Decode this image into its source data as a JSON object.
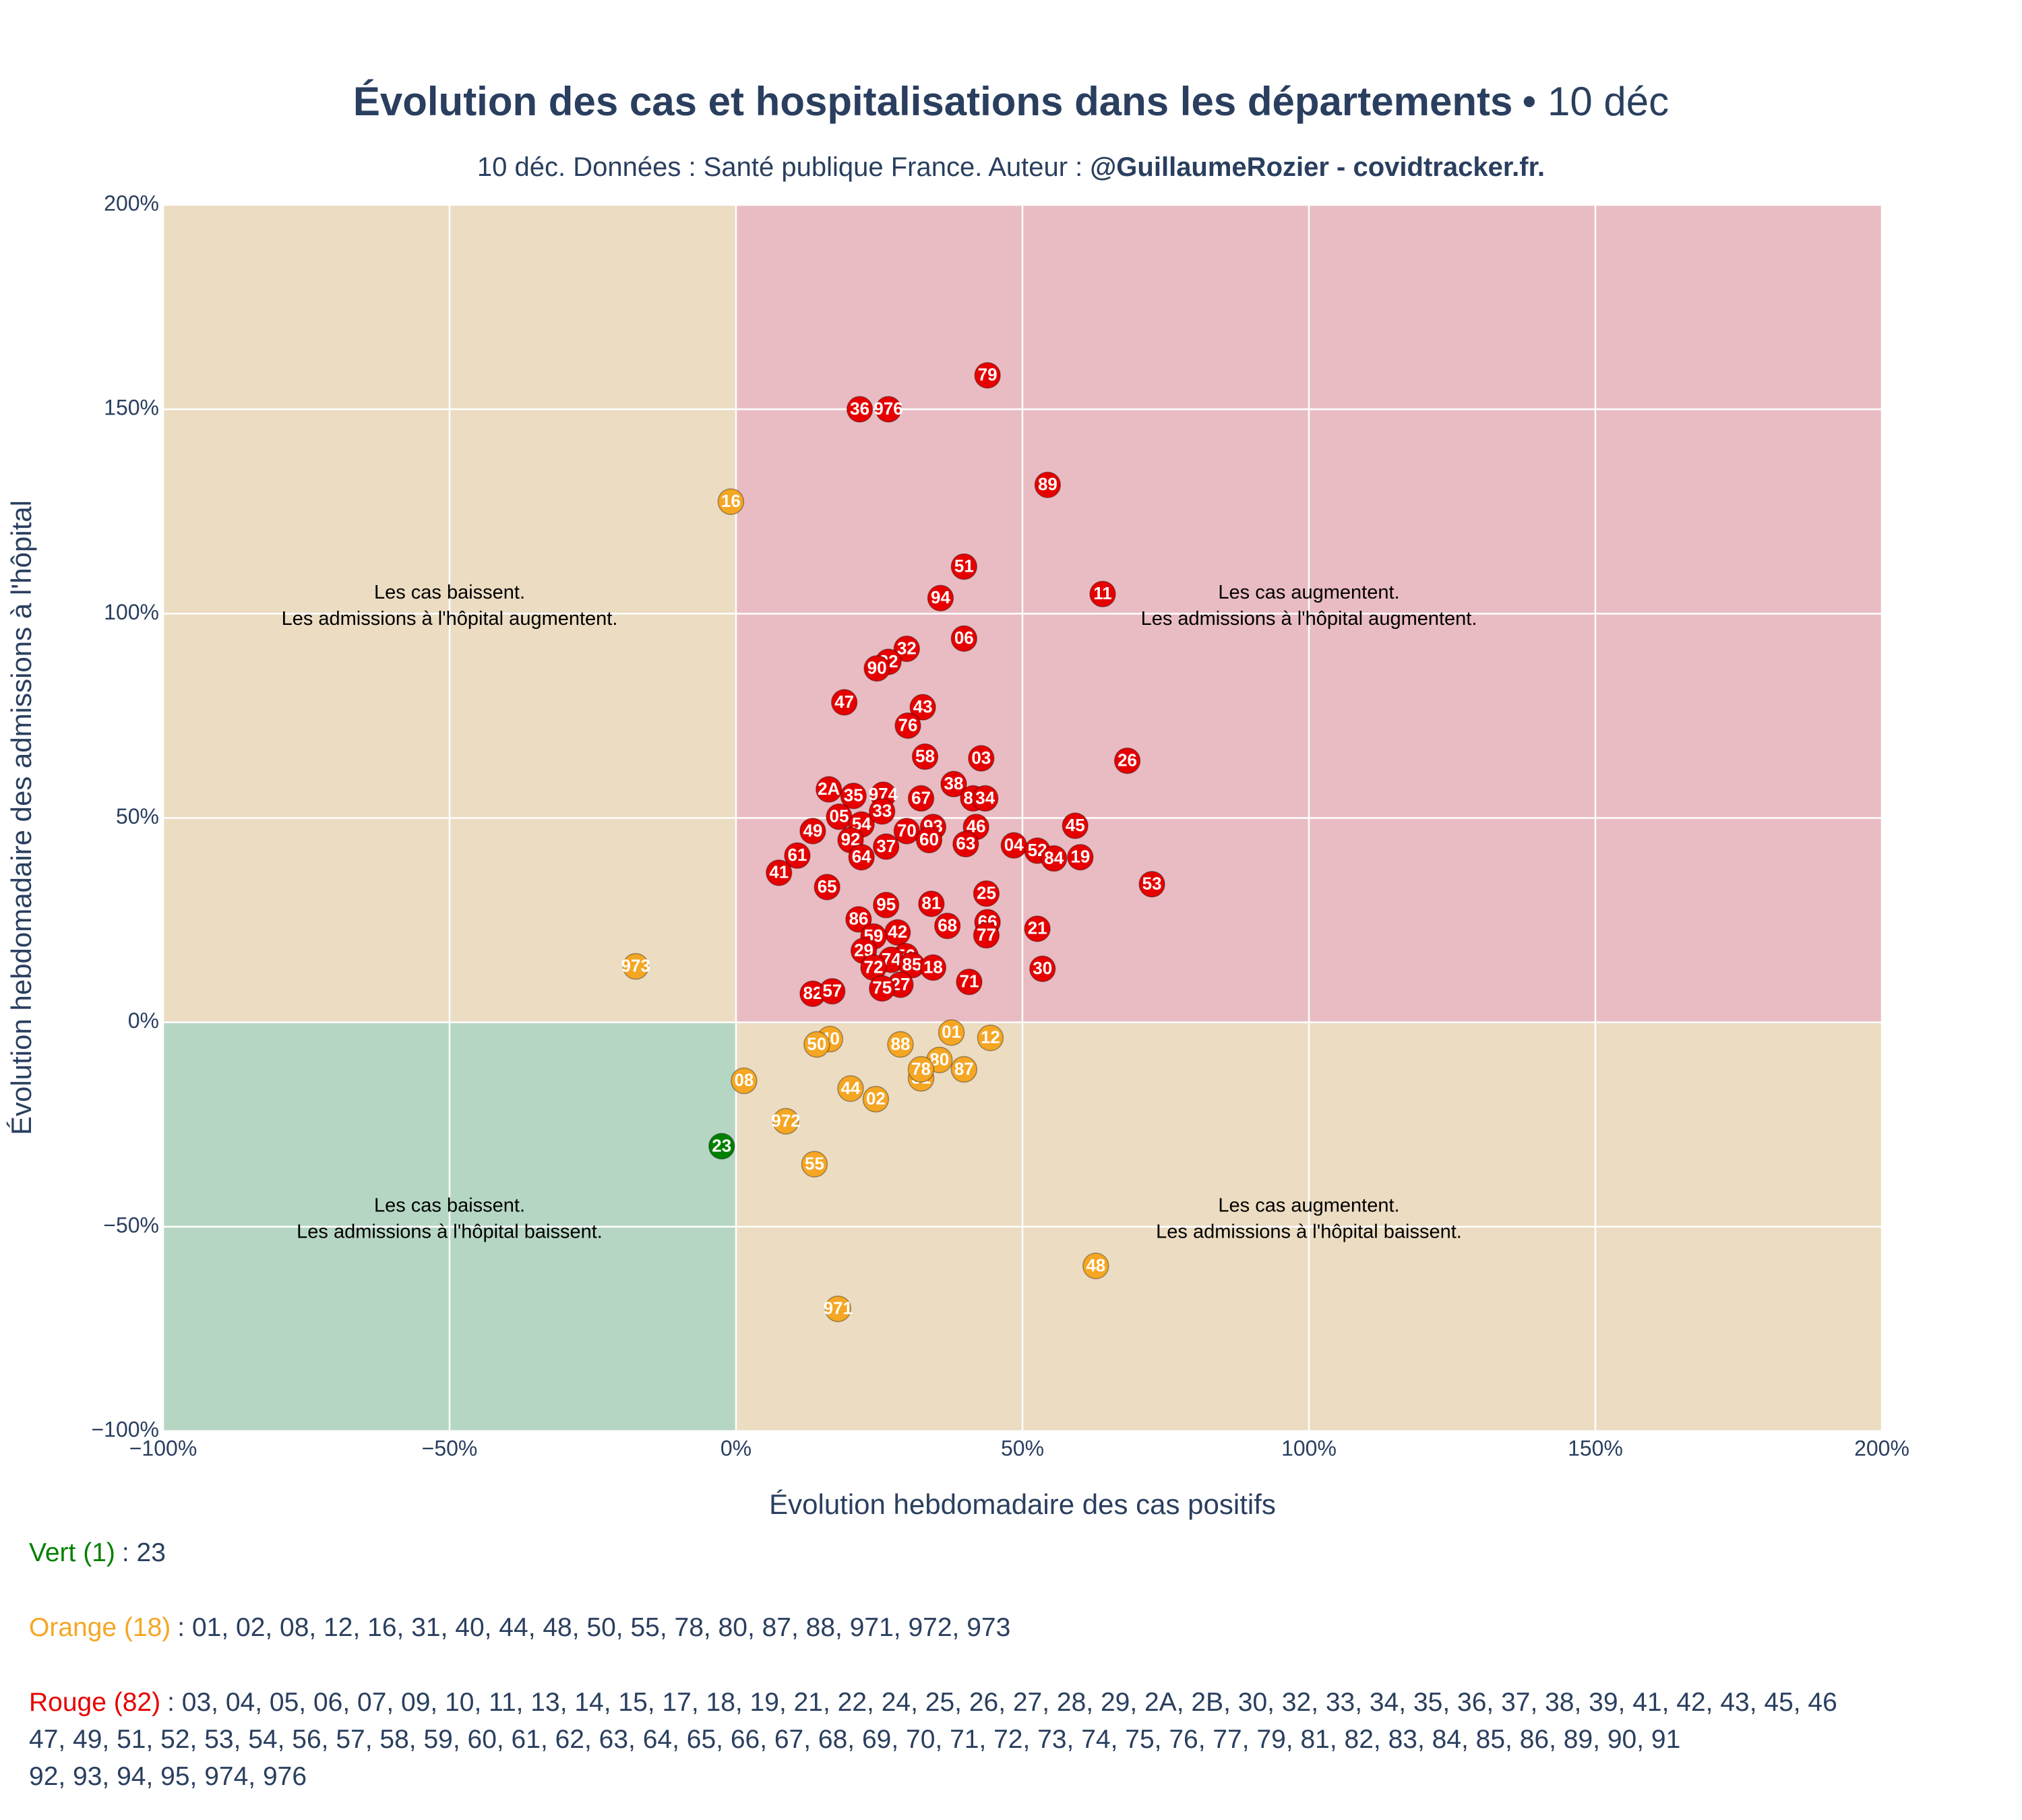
{
  "chart_data": {
    "type": "scatter",
    "title": "Évolution des cas et hospitalisations dans les départements",
    "title_suffix": "• 10 déc",
    "subtitle": "10 déc. Données : Santé publique France. Auteur :",
    "subtitle_bold": "@GuillaumeRozier - covidtracker.fr.",
    "x_label": "Évolution hebdomadaire des cas positifs",
    "y_label": "Évolution hebdomadaire des admissions à l'hôpital",
    "xlim": [
      -100,
      200
    ],
    "ylim": [
      -100,
      200
    ],
    "xticks": [
      {
        "value": -100,
        "label": "−100%"
      },
      {
        "value": -50,
        "label": "−50%"
      },
      {
        "value": 0,
        "label": "0%"
      },
      {
        "value": 50,
        "label": "50%"
      },
      {
        "value": 100,
        "label": "100%"
      },
      {
        "value": 150,
        "label": "150%"
      },
      {
        "value": 200,
        "label": "200%"
      }
    ],
    "yticks": [
      {
        "value": -100,
        "label": "−100%"
      },
      {
        "value": -50,
        "label": "−50%"
      },
      {
        "value": 0,
        "label": "0%"
      },
      {
        "value": 50,
        "label": "50%"
      },
      {
        "value": 100,
        "label": "100%"
      },
      {
        "value": 150,
        "label": "150%"
      },
      {
        "value": 200,
        "label": "200%"
      }
    ],
    "grid": true,
    "annotations": [
      {
        "x": -50,
        "y": 100,
        "lines": [
          "Les cas baissent.",
          "Les admissions à l'hôpital augmentent."
        ]
      },
      {
        "x": 100,
        "y": 100,
        "lines": [
          "Les cas augmentent.",
          "Les admissions à l'hôpital augmentent."
        ]
      },
      {
        "x": -50,
        "y": -50,
        "lines": [
          "Les cas baissent.",
          "Les admissions à l'hôpital baissent."
        ]
      },
      {
        "x": 100,
        "y": -50,
        "lines": [
          "Les cas augmentent.",
          "Les admissions à l'hôpital baissent."
        ]
      }
    ],
    "series": [
      {
        "color": "#f5a623",
        "labels": [
          "16",
          "973",
          "01",
          "12",
          "40",
          "50",
          "88",
          "80",
          "31",
          "78",
          "87",
          "08",
          "44",
          "02",
          "972",
          "55",
          "48",
          "971"
        ],
        "x": [
          -0.9,
          -17.5,
          37.6,
          44.4,
          16.4,
          14.1,
          28.7,
          35.5,
          32.3,
          32.3,
          39.8,
          1.4,
          20.0,
          24.4,
          8.7,
          13.7,
          62.8,
          17.8
        ],
        "values": [
          127.4,
          13.7,
          -2.5,
          -3.8,
          -4.1,
          -5.4,
          -5.4,
          -9.2,
          -13.7,
          -11.5,
          -11.5,
          -14.3,
          -16.2,
          -18.8,
          -24.2,
          -34.7,
          -59.6,
          -70.1
        ]
      },
      {
        "color": "#008000",
        "labels": [
          "23"
        ],
        "x": [
          -2.5
        ],
        "values": [
          -30.3
        ]
      },
      {
        "color": "#e60000",
        "labels": [
          "79",
          "36",
          "976",
          "89",
          "51",
          "11",
          "94",
          "06",
          "32",
          "22",
          "90",
          "47",
          "43",
          "76",
          "58",
          "03",
          "26",
          "2A",
          "35",
          "974",
          "67",
          "38",
          "83",
          "34",
          "05",
          "54",
          "33",
          "49",
          "93",
          "46",
          "70",
          "45",
          "92",
          "37",
          "60",
          "63",
          "04",
          "52",
          "84",
          "19",
          "61",
          "64",
          "41",
          "53",
          "65",
          "25",
          "81",
          "95",
          "86",
          "68",
          "66",
          "21",
          "42",
          "59",
          "77",
          "29",
          "56",
          "74",
          "72",
          "85",
          "18",
          "30",
          "71",
          "27",
          "75",
          "82",
          "57"
        ],
        "x": [
          43.9,
          21.6,
          26.6,
          54.4,
          39.8,
          64.0,
          35.7,
          39.8,
          29.8,
          26.6,
          24.6,
          18.9,
          32.6,
          30.0,
          33.0,
          42.8,
          68.3,
          16.2,
          20.5,
          25.7,
          32.3,
          38.0,
          41.4,
          43.5,
          18.0,
          21.9,
          25.5,
          13.4,
          34.4,
          41.9,
          29.8,
          59.2,
          20.0,
          26.2,
          33.7,
          40.1,
          48.5,
          52.6,
          55.5,
          60.1,
          10.7,
          21.9,
          7.5,
          72.6,
          15.9,
          43.7,
          34.1,
          26.2,
          21.4,
          36.9,
          43.9,
          52.6,
          28.2,
          24.0,
          43.7,
          22.3,
          29.6,
          27.1,
          24.0,
          30.7,
          34.4,
          53.5,
          40.7,
          28.7,
          25.5,
          13.4,
          16.8
        ],
        "values": [
          158.3,
          150,
          150,
          131.5,
          111.5,
          104.8,
          103.8,
          93.9,
          91.4,
          88.2,
          86.6,
          78.3,
          77.1,
          72.6,
          65.0,
          64.6,
          64.0,
          57.0,
          55.4,
          55.7,
          54.8,
          58.3,
          54.8,
          54.8,
          50.3,
          48.4,
          51.6,
          46.8,
          47.8,
          47.8,
          46.8,
          48.1,
          44.6,
          43.0,
          44.6,
          43.6,
          43.3,
          42.0,
          40.1,
          40.4,
          40.8,
          40.4,
          36.6,
          33.8,
          33.1,
          31.5,
          29.0,
          28.7,
          25.2,
          23.6,
          24.5,
          22.9,
          22.0,
          21.0,
          21.3,
          17.5,
          16.2,
          15.3,
          13.4,
          14.0,
          13.4,
          13.1,
          9.9,
          9.2,
          8.3,
          7.0,
          7.6
        ]
      }
    ],
    "footer": [
      {
        "label": "Vert (1)",
        "color": "#008000",
        "lines": [
          ": 23"
        ]
      },
      {
        "label": "Orange (18)",
        "color": "#f5a623",
        "lines": [
          ": 01, 02, 08, 12, 16, 31, 40, 44, 48, 50, 55, 78, 80, 87, 88, 971, 972, 973"
        ]
      },
      {
        "label": "Rouge (82)",
        "color": "#e60000",
        "lines": [
          ": 03, 04, 05, 06, 07, 09, 10, 11, 13, 14, 15, 17, 18, 19, 21, 22, 24, 25, 26, 27, 28, 29, 2A, 2B, 30, 32, 33, 34, 35, 36, 37, 38, 39, 41, 42, 43, 45, 46",
          "47, 49, 51, 52, 53, 54, 56, 57, 58, 59, 60, 61, 62, 63, 64, 65, 66, 67, 68, 69, 70, 71, 72, 73, 74, 75, 76, 77, 79, 81, 82, 83, 84, 85, 86, 89, 90, 91",
          "92, 93, 94, 95, 974, 976"
        ]
      }
    ]
  }
}
